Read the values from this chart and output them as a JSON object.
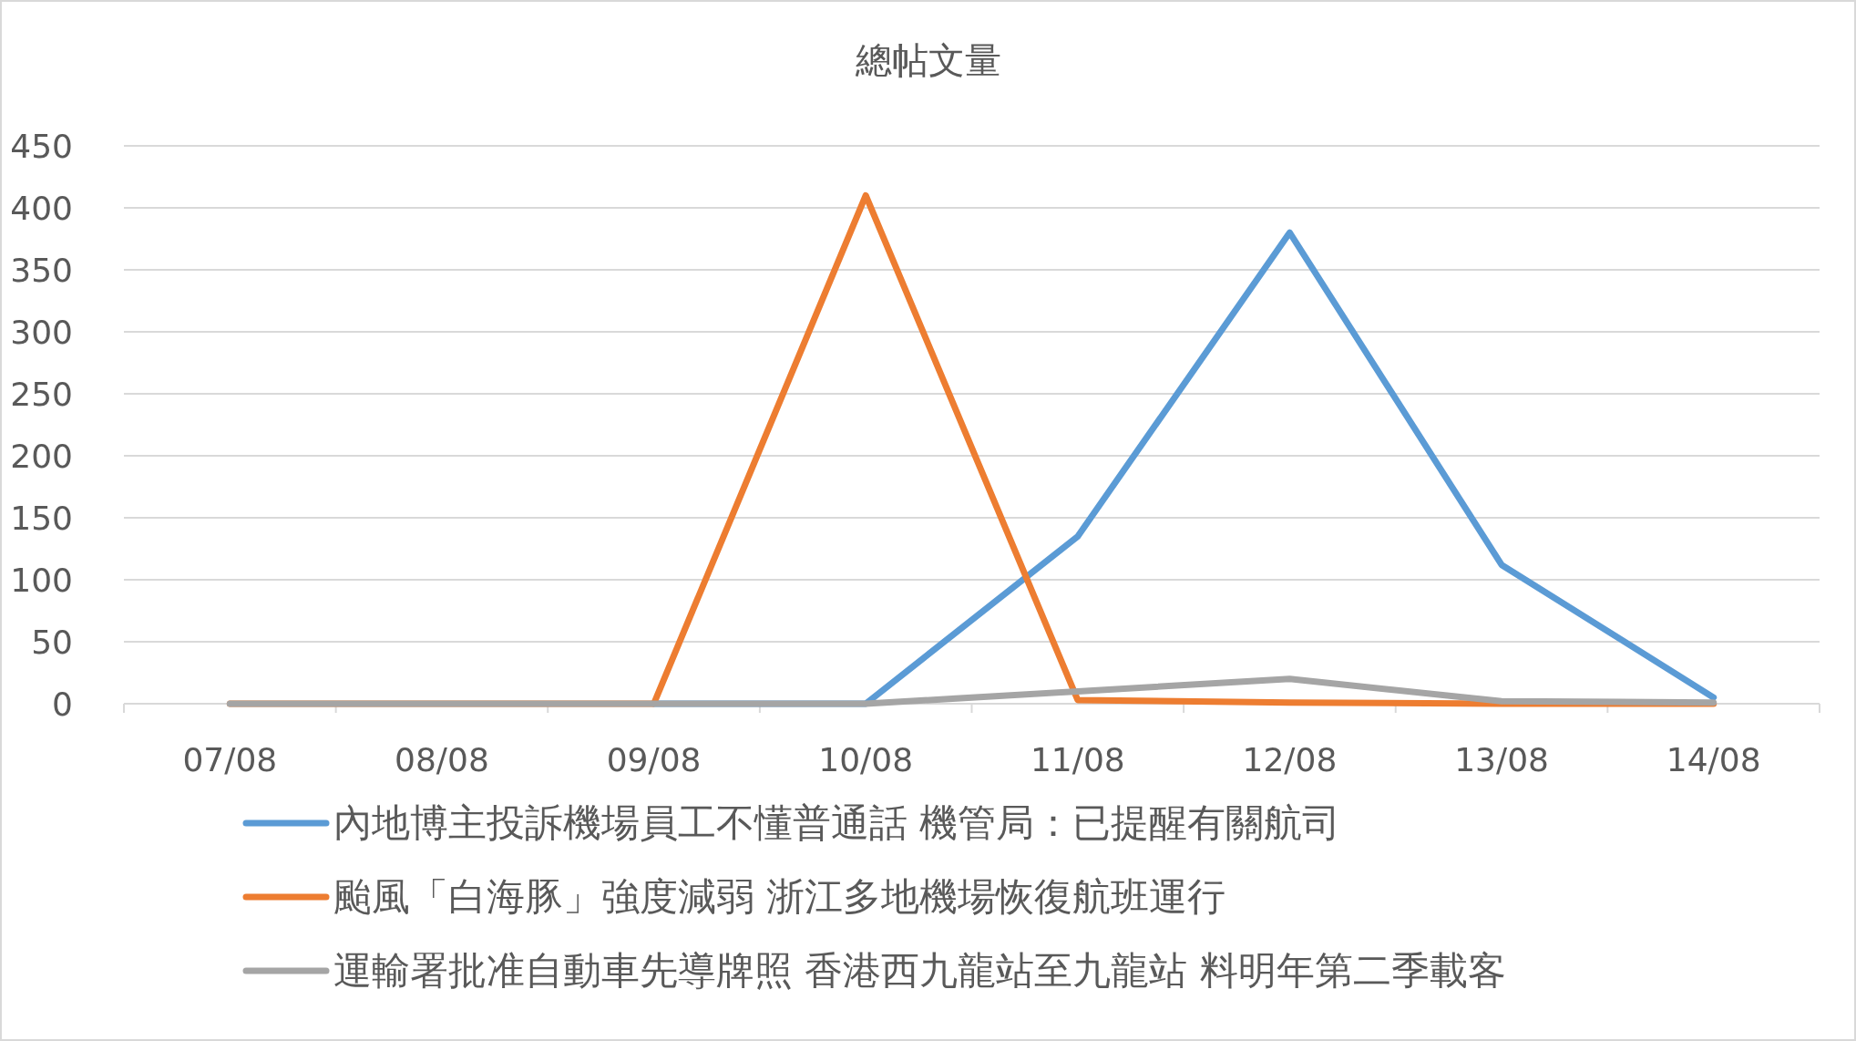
{
  "chart_data": {
    "type": "line",
    "title": "總帖文量",
    "categories": [
      "07/08",
      "08/08",
      "09/08",
      "10/08",
      "11/08",
      "12/08",
      "13/08",
      "14/08"
    ],
    "series": [
      {
        "name": "內地博主投訴機場員工不懂普通話 機管局：已提醒有關航司",
        "color": "#5b9bd5",
        "values": [
          null,
          null,
          0,
          0,
          135,
          380,
          112,
          5
        ]
      },
      {
        "name": "颱風「白海豚」強度減弱 浙江多地機場恢復航班運行",
        "color": "#ed7d31",
        "values": [
          0,
          0,
          0,
          410,
          3,
          1,
          0,
          0
        ]
      },
      {
        "name": "運輸署批准自動車先導牌照 香港西九龍站至九龍站 料明年第二季載客",
        "color": "#a5a5a5",
        "values": [
          0,
          0,
          0,
          0,
          10,
          20,
          2,
          1
        ]
      }
    ],
    "ylim": [
      0,
      450
    ],
    "yticks": [
      0,
      50,
      100,
      150,
      200,
      250,
      300,
      350,
      400,
      450
    ],
    "grid": "y",
    "legend": "bottom",
    "marker": "none",
    "line_style": "solid"
  }
}
